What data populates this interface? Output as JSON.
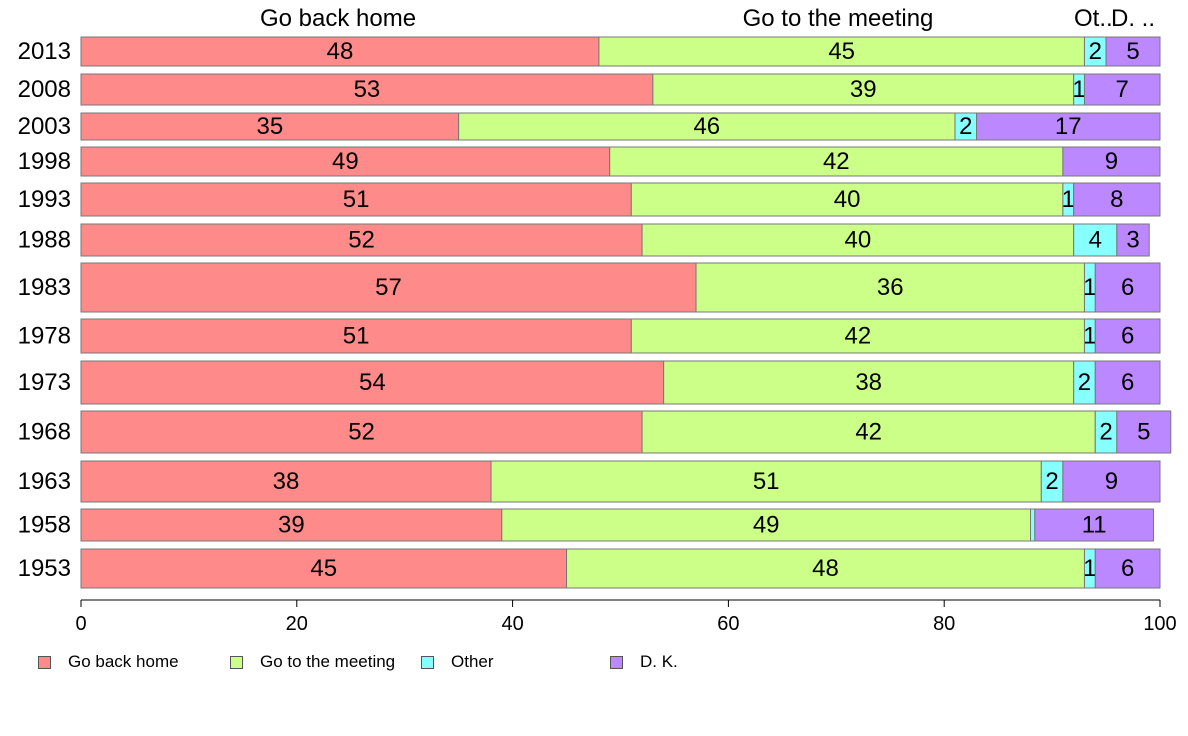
{
  "chart_data": {
    "type": "bar",
    "orientation": "horizontal",
    "stacked": true,
    "categories": [
      "2013",
      "2008",
      "2003",
      "1998",
      "1993",
      "1988",
      "1983",
      "1978",
      "1973",
      "1968",
      "1963",
      "1958",
      "1953"
    ],
    "series": [
      {
        "name": "Go back home",
        "color": "#FF8A8A",
        "values": [
          48,
          53,
          35,
          49,
          51,
          52,
          57,
          51,
          54,
          52,
          38,
          39,
          45
        ]
      },
      {
        "name": "Go to the meeting",
        "color": "#CCFF88",
        "values": [
          45,
          39,
          46,
          42,
          40,
          40,
          36,
          42,
          38,
          42,
          51,
          49,
          48
        ]
      },
      {
        "name": "Other",
        "color": "#88FFFF",
        "values": [
          2,
          1,
          2,
          0,
          1,
          4,
          1,
          1,
          2,
          2,
          2,
          0.4,
          1
        ]
      },
      {
        "name": "D. K.",
        "color": "#BB88FF",
        "values": [
          5,
          7,
          17,
          9,
          8,
          3,
          6,
          6,
          6,
          5,
          9,
          11,
          6
        ]
      }
    ],
    "top_labels": [
      "Go back home",
      "Go to the meeting",
      "Ot..",
      "D. .."
    ],
    "xlim": [
      0,
      100
    ],
    "x_ticks": [
      "0",
      "20",
      "40",
      "60",
      "80",
      "100"
    ],
    "grid": false,
    "legend_position": "bottom"
  }
}
